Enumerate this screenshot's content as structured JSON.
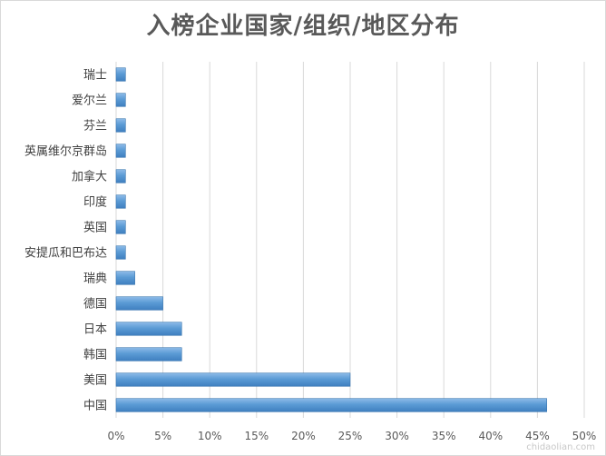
{
  "chart_data": {
    "type": "bar",
    "orientation": "horizontal",
    "title": "入榜企业国家/组织/地区分布",
    "categories": [
      "瑞士",
      "爱尔兰",
      "芬兰",
      "英属维尔京群岛",
      "加拿大",
      "印度",
      "英国",
      "安提瓜和巴布达",
      "瑞典",
      "德国",
      "日本",
      "韩国",
      "美国",
      "中国"
    ],
    "values": [
      1,
      1,
      1,
      1,
      1,
      1,
      1,
      1,
      2,
      5,
      7,
      7,
      25,
      46
    ],
    "xlim": [
      0,
      50
    ],
    "x_ticks": [
      "0%",
      "5%",
      "10%",
      "15%",
      "20%",
      "25%",
      "30%",
      "35%",
      "40%",
      "45%",
      "50%"
    ],
    "grid": true,
    "bar_color": "#5b9bd5",
    "bar_edge_color": "#3a76b0"
  },
  "watermark": "chidaolian.com"
}
